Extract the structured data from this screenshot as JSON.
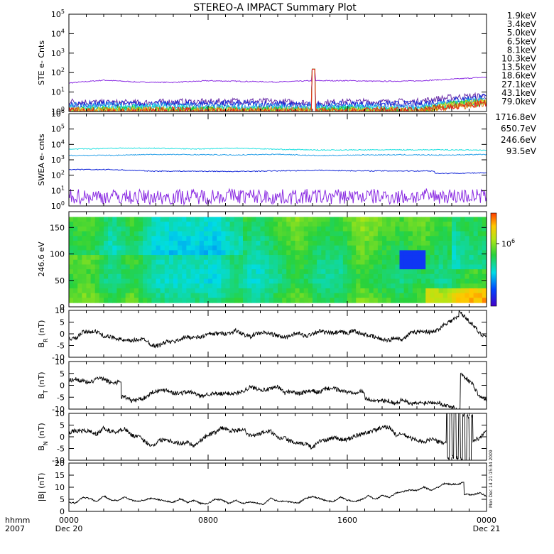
{
  "title": "STEREO-A IMPACT Summary Plot",
  "time_axis": {
    "corner_label": "hhmm",
    "corner_year": "2007",
    "ticks": [
      {
        "hours": 0,
        "label": "0000",
        "date": "Dec 20"
      },
      {
        "hours": 8,
        "label": "0800",
        "date": ""
      },
      {
        "hours": 16,
        "label": "1600",
        "date": ""
      },
      {
        "hours": 24,
        "label": "0000",
        "date": "Dec 21"
      }
    ]
  },
  "stamp": "Mon Dec 14 21:15:34 2009",
  "colors": {
    "violet": "#8a2be2",
    "purple": "#6a2ca8",
    "blue": "#1428d8",
    "skyblue": "#2aa0e8",
    "cyan": "#1ee0e0",
    "teal": "#19c4a0",
    "green": "#22c822",
    "yellow_green": "#a8d81a",
    "gold": "#f0d040",
    "orange": "#e07a10",
    "red": "#e02020"
  },
  "chart_data": [
    {
      "type": "line",
      "name": "ste",
      "ylabel": "STE e- Cnts",
      "yscale": "log",
      "ylim": [
        1,
        100000
      ],
      "yticks": [
        {
          "base": "10",
          "exp": "0"
        },
        {
          "base": "10",
          "exp": "1"
        },
        {
          "base": "10",
          "exp": "2"
        },
        {
          "base": "10",
          "exp": "3"
        },
        {
          "base": "10",
          "exp": "4"
        },
        {
          "base": "10",
          "exp": "5"
        }
      ],
      "series": [
        {
          "name": "1.9keV",
          "color": "#8a2be2",
          "level": 35
        },
        {
          "name": "3.4keV",
          "color": "#6a2ca8",
          "level": 3
        },
        {
          "name": "5.0keV",
          "color": "#1428d8",
          "level": 2.2
        },
        {
          "name": "6.5keV",
          "color": "#2aa0e8",
          "level": 1.8
        },
        {
          "name": "8.1keV",
          "color": "#1ee0e0",
          "level": 1.5
        },
        {
          "name": "10.3keV",
          "color": "#19c4a0",
          "level": 1.3
        },
        {
          "name": "13.5keV",
          "color": "#22c822",
          "level": 1.2
        },
        {
          "name": "18.6keV",
          "color": "#a8d81a",
          "level": 1.1
        },
        {
          "name": "27.1keV",
          "color": "#f0d040",
          "level": 1.05
        },
        {
          "name": "43.1keV",
          "color": "#e07a10",
          "level": 1.02
        },
        {
          "name": "79.0keV",
          "color": "#e02020",
          "level": 1.0
        }
      ]
    },
    {
      "type": "line",
      "name": "swea",
      "ylabel": "SWEA e- cnts",
      "yscale": "log",
      "ylim": [
        1,
        1000000
      ],
      "yticks": [
        {
          "base": "10",
          "exp": "0"
        },
        {
          "base": "10",
          "exp": "1"
        },
        {
          "base": "10",
          "exp": "2"
        },
        {
          "base": "10",
          "exp": "3"
        },
        {
          "base": "10",
          "exp": "4"
        },
        {
          "base": "10",
          "exp": "5"
        },
        {
          "base": "10",
          "exp": "6"
        }
      ],
      "series": [
        {
          "name": "1716.8eV",
          "color": "#8a2be2",
          "level": 4
        },
        {
          "name": "650.7eV",
          "color": "#1428d8",
          "level": 200
        },
        {
          "name": "246.6eV",
          "color": "#2aa0e8",
          "level": 2000
        },
        {
          "name": "93.5eV",
          "color": "#1ee0e0",
          "level": 5000
        }
      ]
    },
    {
      "type": "heatmap",
      "name": "pad",
      "ylabel": "246.6 eV",
      "ylim": [
        0,
        180
      ],
      "yticks": [
        0,
        50,
        100,
        150
      ],
      "colorbar_label": {
        "base": "10",
        "exp": "6"
      }
    },
    {
      "type": "line",
      "name": "br",
      "ylabel": {
        "main": "B",
        "sub": "R",
        "unit": " (nT)"
      },
      "ylim": [
        -10,
        10
      ],
      "yticks": [
        -10,
        -5,
        0,
        5,
        10
      ],
      "series_color": "#000000"
    },
    {
      "type": "line",
      "name": "bt",
      "ylabel": {
        "main": "B",
        "sub": "T",
        "unit": " (nT)"
      },
      "ylim": [
        -10,
        10
      ],
      "yticks": [
        -10,
        -5,
        0,
        5,
        10
      ],
      "series_color": "#000000"
    },
    {
      "type": "line",
      "name": "bn",
      "ylabel": {
        "main": "B",
        "sub": "N",
        "unit": " (nT)"
      },
      "ylim": [
        -10,
        10
      ],
      "yticks": [
        -10,
        -5,
        0,
        5,
        10
      ],
      "series_color": "#000000"
    },
    {
      "type": "line",
      "name": "bmag",
      "ylabel": {
        "main": "|B|",
        "sub": "",
        "unit": " (nT)"
      },
      "ylim": [
        0,
        20
      ],
      "yticks": [
        0,
        5,
        10,
        15,
        20
      ],
      "series_color": "#000000"
    }
  ]
}
